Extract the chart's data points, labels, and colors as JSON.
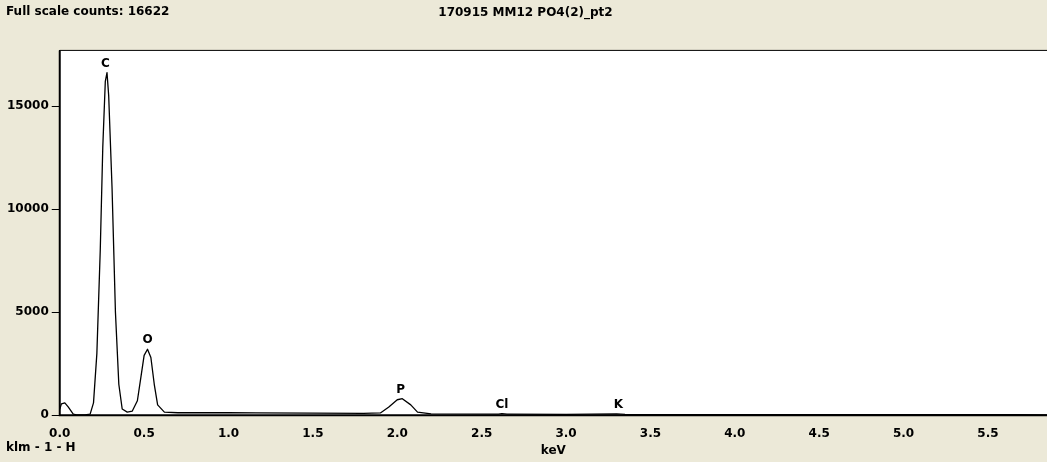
{
  "chart_data": {
    "type": "line",
    "title": "170915 MM12 PO4(2)_pt2",
    "xlabel": "keV",
    "annotations": [
      "Full scale counts: 16622",
      "klm - 1 - H",
      {
        "text": "C",
        "x": 0.27,
        "y": 16622
      },
      {
        "text": "O",
        "x": 0.52,
        "y": 3200
      },
      {
        "text": "P",
        "x": 2.02,
        "y": 800
      },
      {
        "text": "Cl",
        "x": 2.62,
        "y": 80
      },
      {
        "text": "K",
        "x": 3.31,
        "y": 60
      }
    ],
    "x": [
      0,
      0.01,
      0.03,
      0.05,
      0.08,
      0.1,
      0.15,
      0.18,
      0.2,
      0.22,
      0.24,
      0.255,
      0.27,
      0.28,
      0.29,
      0.31,
      0.33,
      0.35,
      0.37,
      0.4,
      0.43,
      0.46,
      0.48,
      0.5,
      0.52,
      0.54,
      0.56,
      0.58,
      0.62,
      0.7,
      1.0,
      1.5,
      1.8,
      1.9,
      1.95,
      2.0,
      2.03,
      2.08,
      2.12,
      2.2,
      2.6,
      2.62,
      2.65,
      3.0,
      3.3,
      3.35,
      4.0,
      5.85
    ],
    "series": [
      {
        "color": "#000000",
        "values": [
          300,
          550,
          600,
          400,
          50,
          20,
          20,
          50,
          600,
          3000,
          8000,
          13000,
          16200,
          16622,
          15500,
          11000,
          5000,
          1500,
          300,
          150,
          200,
          700,
          1800,
          2900,
          3200,
          2800,
          1500,
          500,
          150,
          120,
          120,
          100,
          90,
          110,
          400,
          750,
          800,
          500,
          150,
          60,
          50,
          80,
          50,
          40,
          60,
          40,
          30,
          20
        ]
      }
    ],
    "xlim": [
      0,
      5.85
    ],
    "xticks": [
      {
        "value": 0,
        "label": "0.0"
      },
      {
        "value": 0.5,
        "label": "0.5"
      },
      {
        "value": 1,
        "label": "1.0"
      },
      {
        "value": 1.5,
        "label": "1.5"
      },
      {
        "value": 2,
        "label": "2.0"
      },
      {
        "value": 2.5,
        "label": "2.5"
      },
      {
        "value": 3,
        "label": "3.0"
      },
      {
        "value": 3.5,
        "label": "3.5"
      },
      {
        "value": 4,
        "label": "4.0"
      },
      {
        "value": 4.5,
        "label": "4.5"
      },
      {
        "value": 5,
        "label": "5.0"
      },
      {
        "value": 5.5,
        "label": "5.5"
      }
    ],
    "ylim": [
      0,
      17700
    ],
    "yticks": [
      0,
      5000,
      10000,
      15000
    ],
    "grid": false,
    "legend": false,
    "marker": "none",
    "line_style": "solid"
  }
}
